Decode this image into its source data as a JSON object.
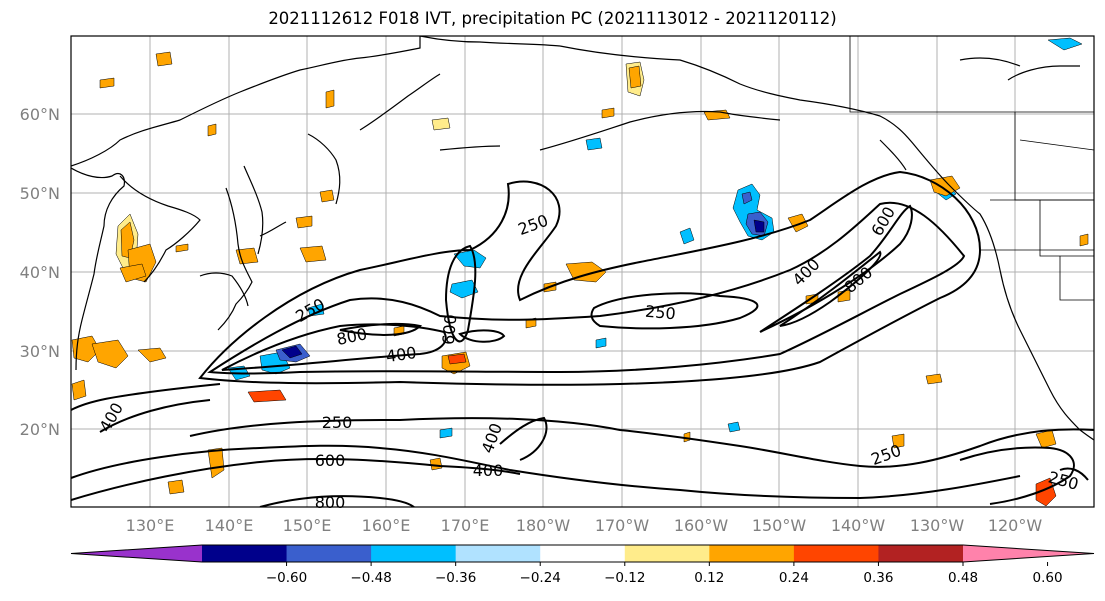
{
  "title": "2021112612 F018 IVT, precipitation PC (2021113012 - 2021120112)",
  "lat_labels": [
    "60°N",
    "50°N",
    "40°N",
    "30°N",
    "20°N"
  ],
  "lon_labels": [
    "130°E",
    "140°E",
    "150°E",
    "160°E",
    "170°E",
    "180°W",
    "170°W",
    "160°W",
    "150°W",
    "140°W",
    "130°W",
    "120°W"
  ],
  "contour_labels": [
    "250",
    "250",
    "800",
    "400",
    "600",
    "250",
    "400",
    "600",
    "800",
    "250",
    "400",
    "600",
    "800",
    "400",
    "250",
    "250",
    "400"
  ],
  "colorbar": {
    "tick_labels": [
      "−0.60",
      "−0.48",
      "−0.36",
      "−0.24",
      "−0.12",
      "0.12",
      "0.24",
      "0.36",
      "0.48",
      "0.60"
    ],
    "colors": [
      "#9932cc",
      "#00008b",
      "#3a5fcd",
      "#00bfff",
      "#b0e2ff",
      "#ffffff",
      "#ffec8b",
      "#ffa500",
      "#ff4500",
      "#b22222",
      "#ff82ab"
    ]
  }
}
